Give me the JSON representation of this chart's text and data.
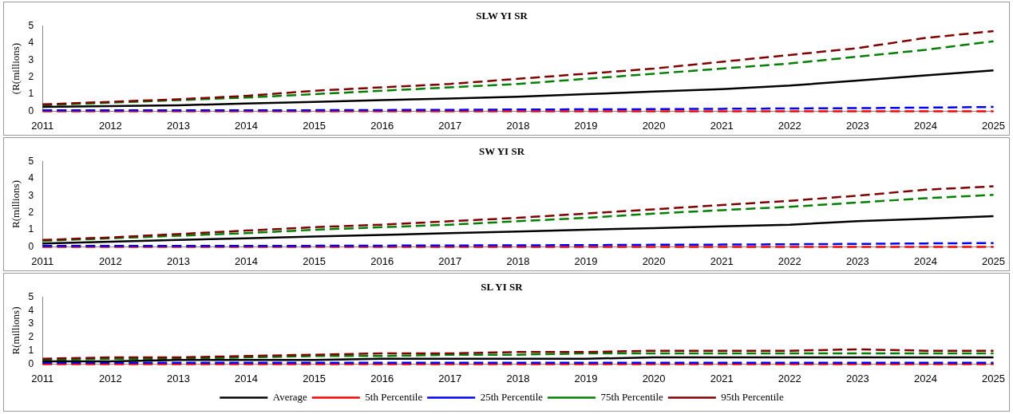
{
  "chart_data": [
    {
      "type": "line",
      "title": "SLW YI SR",
      "ylabel": "(R(millions)",
      "categories": [
        "2011",
        "2012",
        "2013",
        "2014",
        "2015",
        "2016",
        "2017",
        "2018",
        "2019",
        "2020",
        "2021",
        "2022",
        "2023",
        "2024",
        "2025"
      ],
      "ylim": [
        0,
        5
      ],
      "yticks": [
        0,
        1,
        2,
        3,
        4,
        5
      ],
      "grid": false,
      "legend": false,
      "marker": "none",
      "series": [
        {
          "color": "#000000",
          "line_style": "solid",
          "values": [
            0.25,
            0.3,
            0.35,
            0.45,
            0.55,
            0.65,
            0.75,
            0.85,
            1.0,
            1.15,
            1.3,
            1.5,
            1.8,
            2.1,
            2.4
          ]
        },
        {
          "color": "#ff0000",
          "line_style": "dashed",
          "values": [
            0,
            0,
            0,
            0,
            0,
            0,
            0,
            0,
            0,
            0,
            0,
            0,
            0,
            0,
            0
          ]
        },
        {
          "color": "#0000ff",
          "line_style": "dashed",
          "values": [
            0.05,
            0.05,
            0.05,
            0.05,
            0.06,
            0.07,
            0.08,
            0.1,
            0.11,
            0.12,
            0.14,
            0.16,
            0.18,
            0.21,
            0.25
          ]
        },
        {
          "color": "#008000",
          "line_style": "dashed",
          "values": [
            0.35,
            0.5,
            0.65,
            0.8,
            1.0,
            1.2,
            1.4,
            1.6,
            1.9,
            2.2,
            2.5,
            2.8,
            3.2,
            3.6,
            4.1
          ]
        },
        {
          "color": "#800000",
          "line_style": "dashed",
          "values": [
            0.4,
            0.55,
            0.7,
            0.9,
            1.2,
            1.4,
            1.6,
            1.9,
            2.2,
            2.5,
            2.9,
            3.3,
            3.7,
            4.3,
            4.7
          ]
        }
      ]
    },
    {
      "type": "line",
      "title": "SW YI SR",
      "ylabel": "R(millions)",
      "categories": [
        "2011",
        "2012",
        "2013",
        "2014",
        "2015",
        "2016",
        "2017",
        "2018",
        "2019",
        "2020",
        "2021",
        "2022",
        "2023",
        "2024",
        "2025"
      ],
      "ylim": [
        0,
        5
      ],
      "yticks": [
        0,
        1,
        2,
        3,
        4,
        5
      ],
      "grid": false,
      "legend": false,
      "marker": "none",
      "series": [
        {
          "color": "#000000",
          "line_style": "solid",
          "values": [
            0.2,
            0.3,
            0.4,
            0.5,
            0.6,
            0.7,
            0.8,
            0.9,
            1.0,
            1.1,
            1.2,
            1.3,
            1.5,
            1.65,
            1.8
          ]
        },
        {
          "color": "#ff0000",
          "line_style": "dashed",
          "values": [
            0,
            0,
            0,
            0,
            0,
            0,
            0,
            0,
            0,
            0,
            0,
            0,
            0,
            0,
            0
          ]
        },
        {
          "color": "#0000ff",
          "line_style": "dashed",
          "values": [
            0.05,
            0.05,
            0.05,
            0.05,
            0.06,
            0.07,
            0.08,
            0.09,
            0.1,
            0.12,
            0.13,
            0.15,
            0.17,
            0.2,
            0.22
          ]
        },
        {
          "color": "#008000",
          "line_style": "dashed",
          "values": [
            0.35,
            0.5,
            0.65,
            0.8,
            1.0,
            1.15,
            1.3,
            1.5,
            1.7,
            1.95,
            2.15,
            2.35,
            2.6,
            2.85,
            3.05
          ]
        },
        {
          "color": "#800000",
          "line_style": "dashed",
          "values": [
            0.4,
            0.55,
            0.75,
            0.95,
            1.15,
            1.3,
            1.5,
            1.7,
            1.95,
            2.2,
            2.45,
            2.7,
            3.0,
            3.35,
            3.55
          ]
        }
      ]
    },
    {
      "type": "line",
      "title": "SL YI SR",
      "ylabel": "R(millions)",
      "categories": [
        "2011",
        "2012",
        "2013",
        "2014",
        "2015",
        "2016",
        "2017",
        "2018",
        "2019",
        "2020",
        "2021",
        "2022",
        "2023",
        "2024",
        "2025"
      ],
      "ylim": [
        0,
        5
      ],
      "yticks": [
        0,
        1,
        2,
        3,
        4,
        5
      ],
      "grid": false,
      "legend": "bottom",
      "marker": "none",
      "series": [
        {
          "name": "Average",
          "color": "#000000",
          "line_style": "solid",
          "values": [
            0.2,
            0.2,
            0.3,
            0.3,
            0.3,
            0.4,
            0.4,
            0.4,
            0.4,
            0.5,
            0.5,
            0.5,
            0.5,
            0.5,
            0.5
          ]
        },
        {
          "name": "5th Percentile",
          "color": "#ff0000",
          "line_style": "dashed",
          "values": [
            0,
            0,
            0,
            0,
            0,
            0,
            0,
            0,
            0,
            0,
            0,
            0,
            0,
            0,
            0
          ]
        },
        {
          "name": "25th Percentile",
          "color": "#0000ff",
          "line_style": "dashed",
          "values": [
            0.1,
            0.1,
            0.1,
            0.1,
            0.1,
            0.1,
            0.1,
            0.1,
            0.1,
            0.1,
            0.1,
            0.1,
            0.1,
            0.1,
            0.1
          ]
        },
        {
          "name": "75th Percentile",
          "color": "#008000",
          "line_style": "dashed",
          "values": [
            0.3,
            0.4,
            0.4,
            0.5,
            0.6,
            0.6,
            0.7,
            0.7,
            0.8,
            0.8,
            0.8,
            0.8,
            0.8,
            0.8,
            0.8
          ]
        },
        {
          "name": "95th Percentile",
          "color": "#800000",
          "line_style": "dashed",
          "values": [
            0.4,
            0.5,
            0.5,
            0.6,
            0.7,
            0.8,
            0.8,
            0.9,
            0.9,
            1.0,
            1.0,
            1.0,
            1.1,
            1.0,
            1.0
          ]
        }
      ]
    }
  ]
}
